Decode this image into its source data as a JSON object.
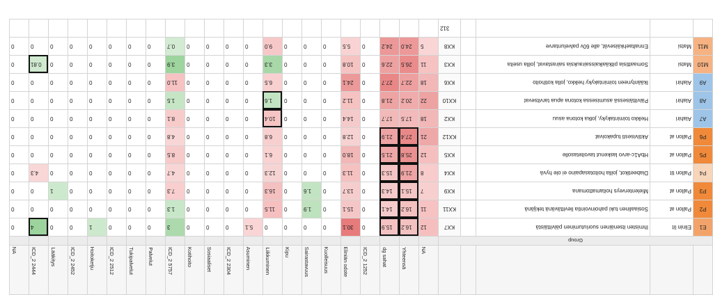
{
  "sheet": {
    "top_value": "312",
    "group_header_label": "Group",
    "columns": [
      {
        "group": "",
        "label": "NA"
      },
      {
        "group": "",
        "label": "Yhteensä"
      },
      {
        "group": "",
        "label": "dg sahat"
      },
      {
        "group": "",
        "label": "ICD_2 1252"
      },
      {
        "group": "",
        "label": "Eliniän odote"
      },
      {
        "group": "",
        "label": "Kuolleisuus"
      },
      {
        "group": "",
        "label": "Sairastavuus"
      },
      {
        "group": "",
        "label": "Kipu"
      },
      {
        "group": "",
        "label": "Liikkuminen"
      },
      {
        "group": "",
        "label": "Asuminen"
      },
      {
        "group": "",
        "label": "ICD_2 2304"
      },
      {
        "group": "",
        "label": "Sosiaaliset"
      },
      {
        "group": "",
        "label": "Kotihoito"
      },
      {
        "group": "",
        "label": "ICD_2 5757"
      },
      {
        "group": "",
        "label": "Palvelut"
      },
      {
        "group": "",
        "label": "Tukipalvelut"
      },
      {
        "group": "",
        "label": "ICD_2 2512"
      },
      {
        "group": "",
        "label": "Hoitoketju"
      },
      {
        "group": "",
        "label": "ICD_2 2452"
      },
      {
        "group": "",
        "label": "Lääkitys"
      },
      {
        "group": "",
        "label": "ICD_2 2444"
      },
      {
        "group": "",
        "label": "NA"
      }
    ],
    "rows": [
      {
        "id": "E1",
        "cat": "Elinin lit",
        "label": "Ihmisten itsenäinen suoriutuminen päivittäistä",
        "code": "KX7",
        "vals": [
          "12",
          "16.2",
          "15.9",
          "0",
          "30.1",
          "0",
          "0",
          "0",
          "0",
          "5.1",
          "0",
          "0",
          "0",
          "3",
          "0",
          "0",
          "0",
          "1",
          "0",
          "0",
          "4",
          "0"
        ]
      },
      {
        "id": "P2",
        "cat": "Pallon at",
        "label": "Sosiaalinen tuki pahoinvointia lievittävänä tekijänä",
        "code": "KX11",
        "vals": [
          "11",
          "16.2",
          "14.1",
          "0",
          "15.1",
          "0",
          "1.9",
          "0",
          "11.5",
          "0",
          "0",
          "0",
          "0",
          "1.3",
          "0",
          "0",
          "0",
          "0",
          "0",
          "0",
          "0",
          "0"
        ]
      },
      {
        "id": "P3",
        "cat": "Pallon at",
        "label": "Mielenterveys hoitamattomana",
        "code": "KX9",
        "vals": [
          "7",
          "15.1",
          "14.3",
          "0",
          "13.7",
          "0",
          "1.6",
          "0",
          "16.3",
          "0",
          "0",
          "0",
          "0",
          "7.3",
          "0",
          "0",
          "0",
          "0",
          "0",
          "1",
          "0",
          "0"
        ]
      },
      {
        "id": "P4",
        "cat": "Pallon tit",
        "label": "Diabeetikot, joilla hoitotasapaino ei ole hyvä",
        "code": "KX4",
        "vals": [
          "8",
          "21.9",
          "15.3",
          "0",
          "11.3",
          "0",
          "0",
          "0",
          "12.3",
          "0",
          "0",
          "0",
          "0",
          "4.7",
          "0",
          "0",
          "0",
          "0",
          "0",
          "0",
          "4.3",
          "0"
        ]
      },
      {
        "id": "P5",
        "cat": "Pallon at",
        "label": "HbA1c-arvo laskenut tavoitetasolle",
        "code": "KX5",
        "vals": [
          "12",
          "25.8",
          "21.5",
          "0",
          "18.0",
          "0",
          "0",
          "0",
          "6.1",
          "0",
          "0",
          "0",
          "0",
          "8.5",
          "0",
          "0",
          "0",
          "0",
          "0",
          "0",
          "0",
          "0"
        ]
      },
      {
        "id": "P6",
        "cat": "Pallon at",
        "label": "Aktiivisesti tupakoivat",
        "code": "KX12",
        "vals": [
          "21",
          "27.4",
          "21.9",
          "0",
          "12.8",
          "0",
          "0",
          "0",
          "6.8",
          "0",
          "0",
          "0",
          "0",
          "4.8",
          "0",
          "0",
          "0",
          "0",
          "0",
          "0",
          "0",
          "0"
        ]
      },
      {
        "id": "A7",
        "cat": "Alahiri",
        "label": "Heikko toimintakyky, jotka kotona asuu",
        "code": "KX2",
        "vals": [
          "18",
          "17.5",
          "17.7",
          "0",
          "14.4",
          "0",
          "0",
          "0",
          "10.4",
          "0",
          "0",
          "0",
          "0",
          "8.1",
          "0",
          "0",
          "0",
          "0",
          "0",
          "0",
          "0",
          "0"
        ]
      },
      {
        "id": "A8",
        "cat": "Alahiri",
        "label": "Päivittäisessä asumisessa kotona apua tarvitsevat",
        "code": "KX10",
        "vals": [
          "22",
          "20.2",
          "21.8",
          "0",
          "11.2",
          "0",
          "0",
          "0",
          "1.6",
          "0",
          "0",
          "0",
          "0",
          "1.5",
          "0",
          "0",
          "0",
          "0",
          "0",
          "0",
          "0",
          "0"
        ]
      },
      {
        "id": "A9",
        "cat": "Alahiri",
        "label": "Ikääntyneen toimintakyky heikko, jolla kotihoito",
        "code": "KX6",
        "vals": [
          "18",
          "22.7",
          "27.7",
          "0",
          "24.1",
          "0",
          "0",
          "0",
          "6.5",
          "0",
          "0",
          "0",
          "0",
          "11.0",
          "0",
          "0",
          "0",
          "0",
          "0",
          "0",
          "0",
          "0"
        ]
      },
      {
        "id": "M10",
        "cat": "Matsi",
        "label": "Somaattisia pitkäaikaissairauksia sairastavat, joilla useita",
        "code": "KX3",
        "vals": [
          "11",
          "26.5",
          "22.6",
          "0",
          "10.8",
          "0",
          "0",
          "0",
          "3.3",
          "0",
          "0",
          "0",
          "0",
          "3.9",
          "0",
          "0",
          "0",
          "0",
          "0",
          "0",
          "0.81",
          "0"
        ]
      },
      {
        "id": "M11",
        "cat": "Matsi",
        "label": "Ennaltaehkäisevät, alle 60v palveluntarve",
        "code": "KX8",
        "vals": [
          "5",
          "24.0",
          "24.2",
          "0",
          "5.5",
          "0",
          "0",
          "0",
          "9.0",
          "0",
          "0",
          "0",
          "0",
          "0.7",
          "0",
          "0",
          "0",
          "0",
          "0",
          "0",
          "0",
          "0"
        ]
      }
    ]
  },
  "colors": {
    "header_bg": "#f6f6f6",
    "grid_line": "#d4d4d4",
    "box": "#111111"
  }
}
